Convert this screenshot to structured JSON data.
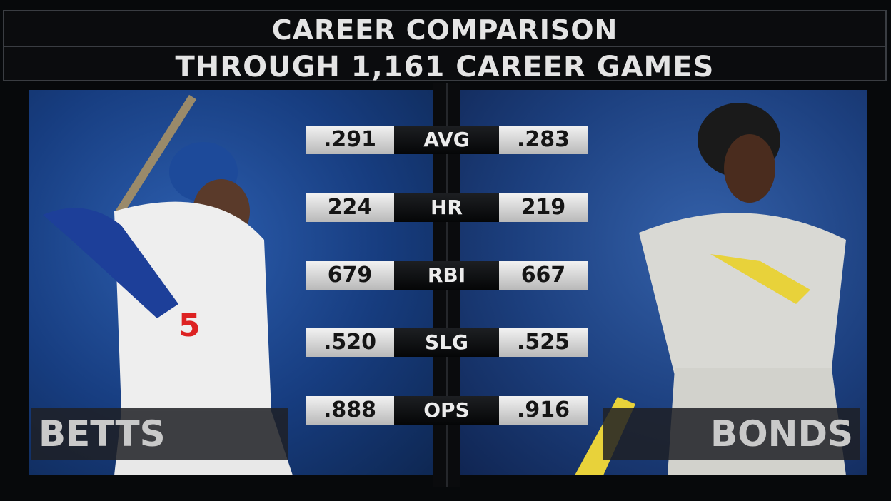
{
  "header": {
    "title": "CAREER COMPARISON",
    "subtitle": "THROUGH 1,161 CAREER GAMES"
  },
  "players": {
    "left": "BETTS",
    "right": "BONDS"
  },
  "rows": [
    {
      "label": "AVG",
      "left": ".291",
      "right": ".283"
    },
    {
      "label": "HR",
      "left": "224",
      "right": "219"
    },
    {
      "label": "RBI",
      "left": "679",
      "right": "667"
    },
    {
      "label": "SLG",
      "left": ".520",
      "right": ".525"
    },
    {
      "label": "OPS",
      "left": ".888",
      "right": ".916"
    }
  ]
}
